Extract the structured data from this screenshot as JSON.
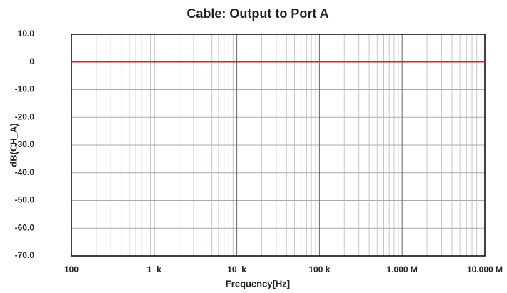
{
  "chart_data": {
    "type": "line",
    "title": "Cable: Output to Port A",
    "x_label": "Frequency[Hz]",
    "y_label": "dB(CH_A)",
    "x": [
      100,
      10000000
    ],
    "series": [
      {
        "name": "CH_A",
        "color": "#e02020",
        "values": [
          0,
          0
        ]
      }
    ],
    "xlim": [
      100,
      10000000
    ],
    "x_log": true,
    "xticks": [
      100,
      {
        "value": 1000,
        "label": "1  k"
      },
      {
        "value": 10000,
        "label": "10  k"
      },
      {
        "value": 100000,
        "label": "100 k"
      },
      {
        "value": 1000000,
        "label": "1.000 M"
      },
      {
        "value": 10000000,
        "label": "10.000 M"
      }
    ],
    "ylim": [
      -70,
      10
    ],
    "yticks": [
      {
        "value": 10,
        "label": "10.0"
      },
      0,
      {
        "value": -10,
        "label": "-10.0"
      },
      {
        "value": -20,
        "label": "-20.0"
      },
      {
        "value": -30,
        "label": "-30.0"
      },
      {
        "value": -40,
        "label": "-40.0"
      },
      {
        "value": -50,
        "label": "-50.0"
      },
      {
        "value": -60,
        "label": "-60.0"
      },
      {
        "value": -70,
        "label": "-70.0"
      }
    ],
    "grid": true,
    "minor_grid": true
  }
}
